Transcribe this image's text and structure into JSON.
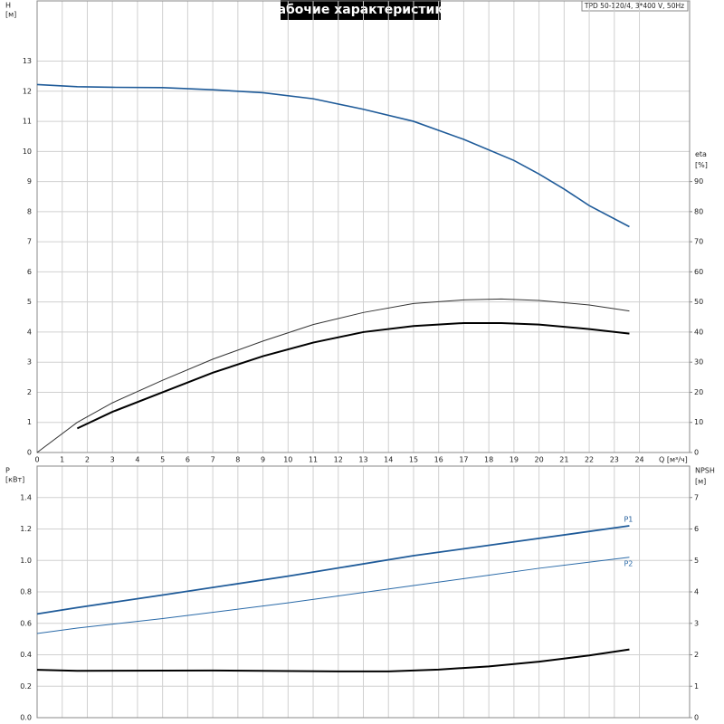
{
  "chart_data": [
    {
      "type": "line",
      "title": "Рабочие характеристики",
      "annotation": "TPD 50-120/4, 3*400 V, 50Hz",
      "x_label": "Q [м³/ч]",
      "y_label": "H",
      "y_unit": "[м]",
      "y2_label": "eta",
      "y2_unit": "[%]",
      "x": [
        0,
        1.6,
        3,
        5,
        7,
        9,
        11,
        13,
        15,
        17,
        18.5,
        19,
        20,
        21,
        22,
        23.6
      ],
      "xlim": [
        0,
        26
      ],
      "xticks": [
        0,
        1,
        2,
        3,
        4,
        5,
        6,
        7,
        8,
        9,
        10,
        11,
        12,
        13,
        14,
        15,
        16,
        17,
        18,
        19,
        20,
        21,
        22,
        23,
        24
      ],
      "ylim": [
        0,
        15
      ],
      "yticks": [
        0,
        1,
        2,
        3,
        4,
        5,
        6,
        7,
        8,
        9,
        10,
        11,
        12,
        13
      ],
      "y2lim": [
        0,
        150
      ],
      "y2ticks": [
        0,
        10,
        20,
        30,
        40,
        50,
        60,
        70,
        80,
        90
      ],
      "grid": true,
      "series": [
        {
          "color": "#1f5b99",
          "width": 1.6,
          "values": [
            12.22,
            12.15,
            12.13,
            12.12,
            12.05,
            11.95,
            11.75,
            11.4,
            11.0,
            10.4,
            null,
            9.7,
            9.25,
            8.75,
            8.2,
            7.5
          ]
        },
        {
          "color": "#333333",
          "width": 1,
          "axis": "y2",
          "values": [
            0,
            10,
            16.5,
            24,
            31,
            37,
            42.5,
            46.5,
            49.5,
            50.7,
            51,
            null,
            50.5,
            null,
            49,
            47
          ]
        },
        {
          "color": "#000000",
          "width": 2,
          "axis": "y2",
          "values": [
            null,
            8,
            13.5,
            20,
            26.5,
            32,
            36.5,
            40,
            42,
            43,
            43,
            null,
            42.5,
            null,
            41,
            39.5
          ]
        }
      ]
    },
    {
      "type": "line",
      "y_label": "P",
      "y_unit": "[кВт]",
      "y2_label": "NPSH",
      "y2_unit": "[м]",
      "x": [
        0,
        1.6,
        5,
        7,
        10,
        12,
        14,
        15,
        16,
        18,
        20,
        22,
        23.6
      ],
      "xlim": [
        0,
        26
      ],
      "ylim": [
        0,
        1.6
      ],
      "yticks": [
        {
          "value": 0,
          "label": "0.0"
        },
        0.2,
        0.4,
        0.6,
        0.8,
        {
          "value": 1,
          "label": "1.0"
        },
        1.2,
        1.4
      ],
      "y2lim": [
        0,
        8
      ],
      "y2ticks": [
        0,
        1,
        2,
        3,
        4,
        5,
        6,
        7
      ],
      "grid": true,
      "series": [
        {
          "name": "P1",
          "color": "#1f5b99",
          "width": 1.8,
          "values": [
            0.66,
            0.7,
            0.78,
            null,
            0.9,
            null,
            null,
            1.03,
            null,
            null,
            1.14,
            null,
            1.22
          ]
        },
        {
          "name": "P2",
          "color": "#2a6aa8",
          "width": 1,
          "values": [
            0.535,
            0.57,
            0.63,
            null,
            0.73,
            null,
            null,
            0.84,
            null,
            null,
            0.95,
            null,
            1.02
          ]
        },
        {
          "color": "#000000",
          "width": 2,
          "axis": "y2",
          "values": [
            1.52,
            1.49,
            null,
            1.5,
            null,
            1.47,
            1.47,
            null,
            1.53,
            1.63,
            1.78,
            1.98,
            2.17
          ]
        }
      ]
    }
  ]
}
